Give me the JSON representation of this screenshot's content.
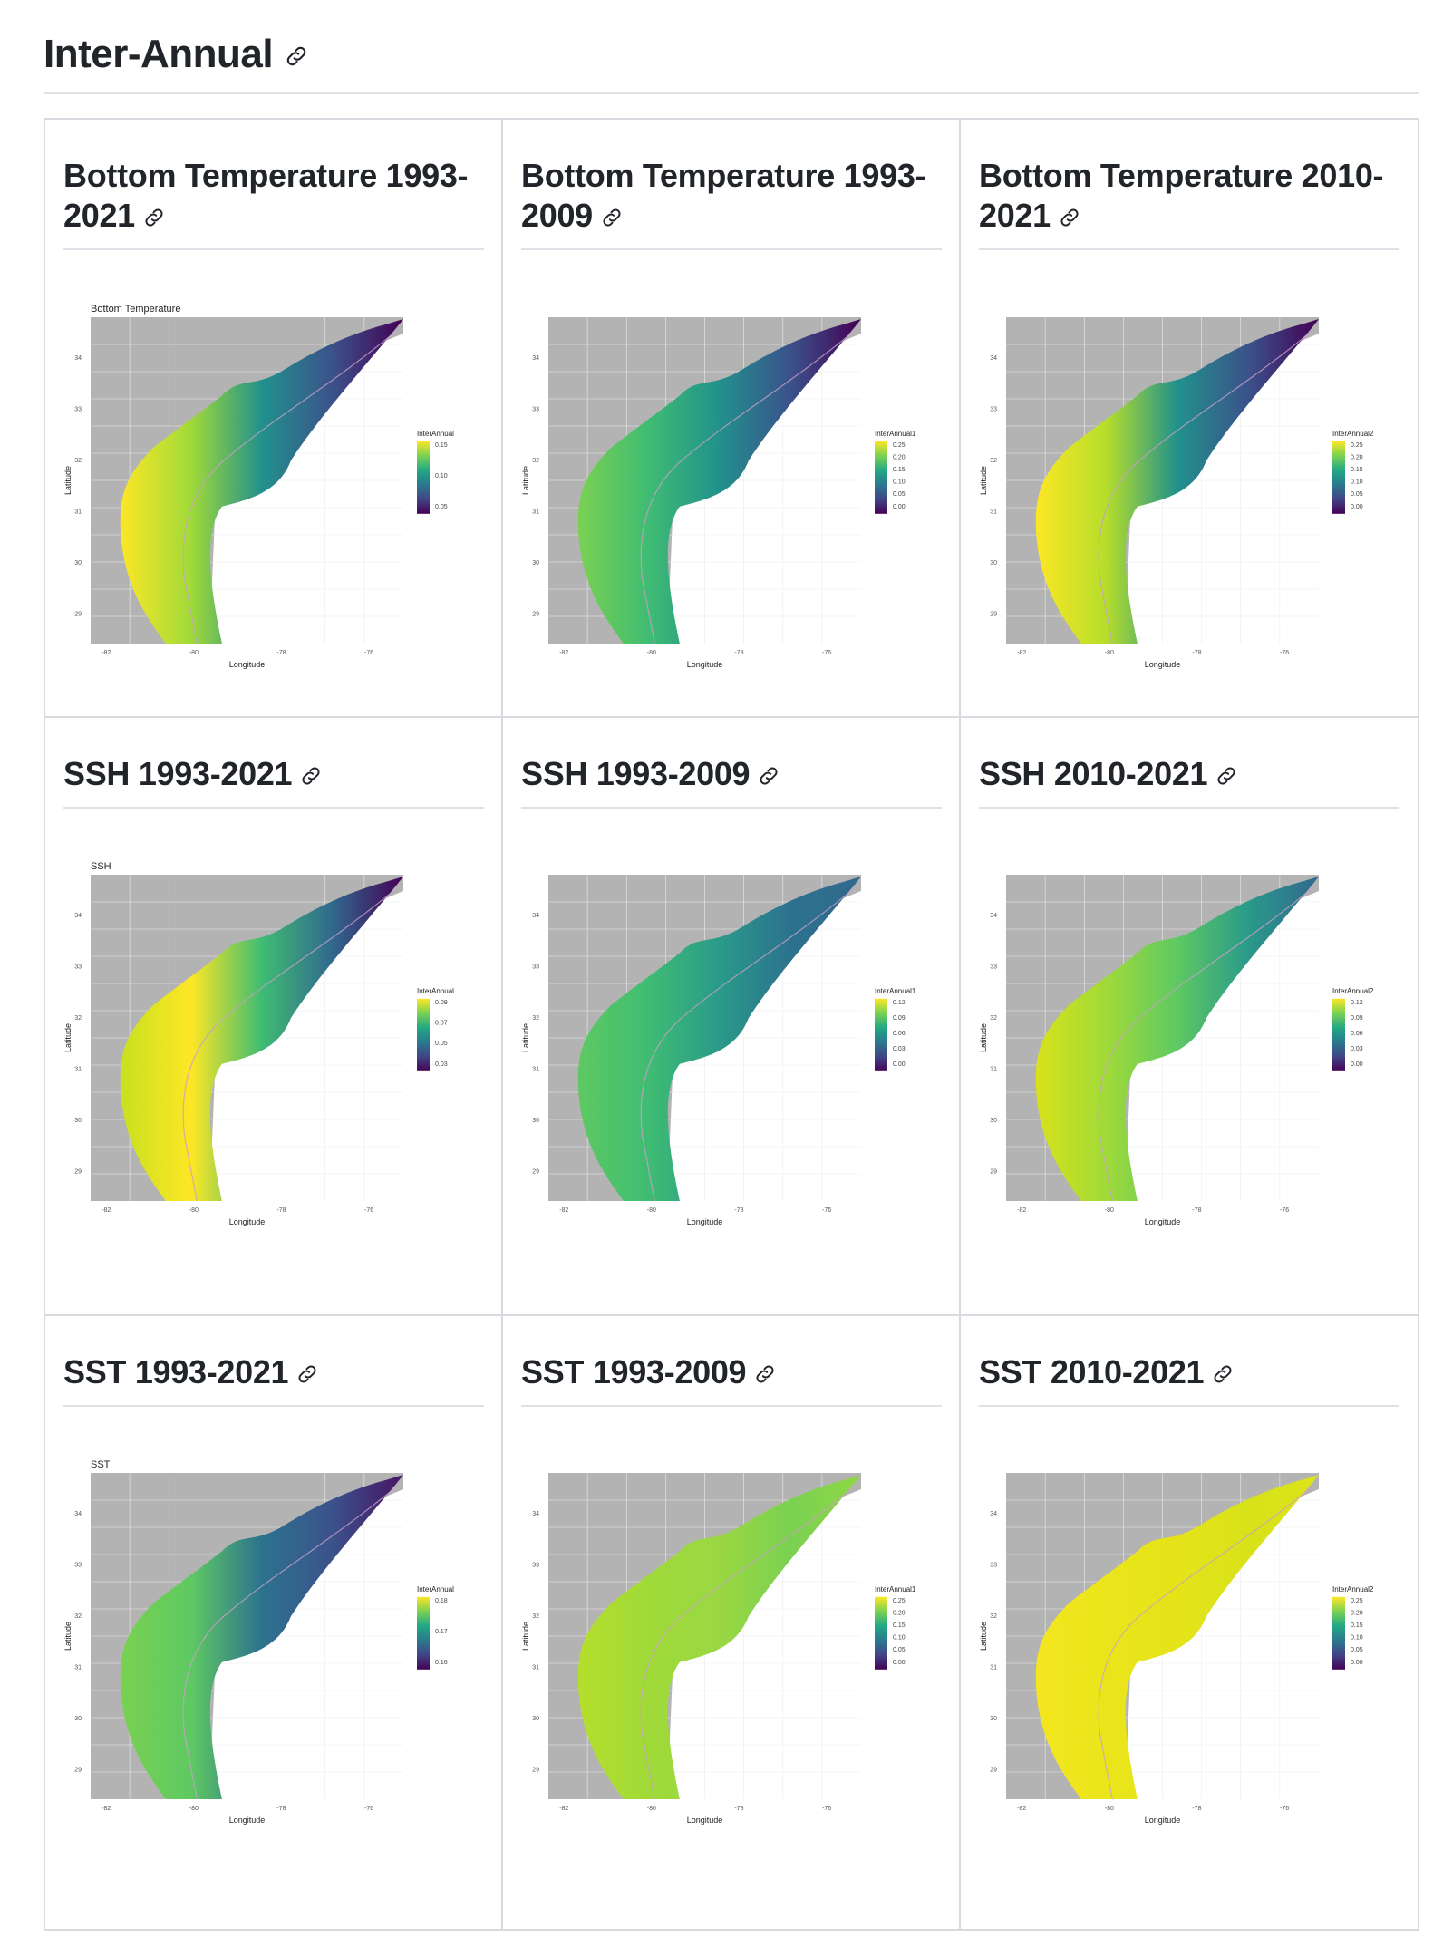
{
  "section": {
    "title": "Inter-Annual",
    "link_icon": "link-icon"
  },
  "cards": [
    {
      "title": "Bottom Temperature 1993-2021",
      "plot_title": "Bottom Temperature",
      "legend_title": "InterAnnual",
      "legend_ticks": [
        "0.15",
        "0.10",
        "0.05"
      ],
      "palette": "bt_all"
    },
    {
      "title": "Bottom Temperature 1993-2009",
      "plot_title": "",
      "legend_title": "InterAnnual1",
      "legend_ticks": [
        "0.25",
        "0.20",
        "0.15",
        "0.10",
        "0.05",
        "0.00"
      ],
      "palette": "bt_a"
    },
    {
      "title": "Bottom Temperature 2010-2021",
      "plot_title": "",
      "legend_title": "InterAnnual2",
      "legend_ticks": [
        "0.25",
        "0.20",
        "0.15",
        "0.10",
        "0.05",
        "0.00"
      ],
      "palette": "bt_b"
    },
    {
      "title": "SSH 1993-2021",
      "plot_title": "SSH",
      "legend_title": "InterAnnual",
      "legend_ticks": [
        "0.09",
        "0.07",
        "0.05",
        "0.03"
      ],
      "palette": "ssh_all"
    },
    {
      "title": "SSH 1993-2009",
      "plot_title": "",
      "legend_title": "InterAnnual1",
      "legend_ticks": [
        "0.12",
        "0.09",
        "0.06",
        "0.03",
        "0.00"
      ],
      "palette": "ssh_a"
    },
    {
      "title": "SSH 2010-2021",
      "plot_title": "",
      "legend_title": "InterAnnual2",
      "legend_ticks": [
        "0.12",
        "0.09",
        "0.06",
        "0.03",
        "0.00"
      ],
      "palette": "ssh_b"
    },
    {
      "title": "SST 1993-2021",
      "plot_title": "SST",
      "legend_title": "InterAnnual",
      "legend_ticks": [
        "0.18",
        "0.17",
        "0.16"
      ],
      "palette": "sst_all"
    },
    {
      "title": "SST 1993-2009",
      "plot_title": "",
      "legend_title": "InterAnnual1",
      "legend_ticks": [
        "0.25",
        "0.20",
        "0.15",
        "0.10",
        "0.05",
        "0.00"
      ],
      "palette": "sst_a"
    },
    {
      "title": "SST 2010-2021",
      "plot_title": "",
      "legend_title": "InterAnnual2",
      "legend_ticks": [
        "0.25",
        "0.20",
        "0.15",
        "0.10",
        "0.05",
        "0.00"
      ],
      "palette": "sst_b"
    }
  ],
  "map_axes": {
    "xlabel": "Longitude",
    "ylabel": "Latitude",
    "x_ticks": [
      "-82",
      "-80",
      "-78",
      "-76"
    ],
    "y_ticks": [
      "34",
      "33",
      "32",
      "31",
      "30",
      "29"
    ]
  },
  "colors": {
    "land": "#b3b3b3",
    "viridis_high": "#fde725",
    "viridis_mid_high": "#7ad151",
    "viridis_mid": "#21918c",
    "viridis_mid_low": "#3b528b",
    "viridis_low": "#440154",
    "rule": "#dee2e6",
    "card_border": "#d7dbdf"
  }
}
